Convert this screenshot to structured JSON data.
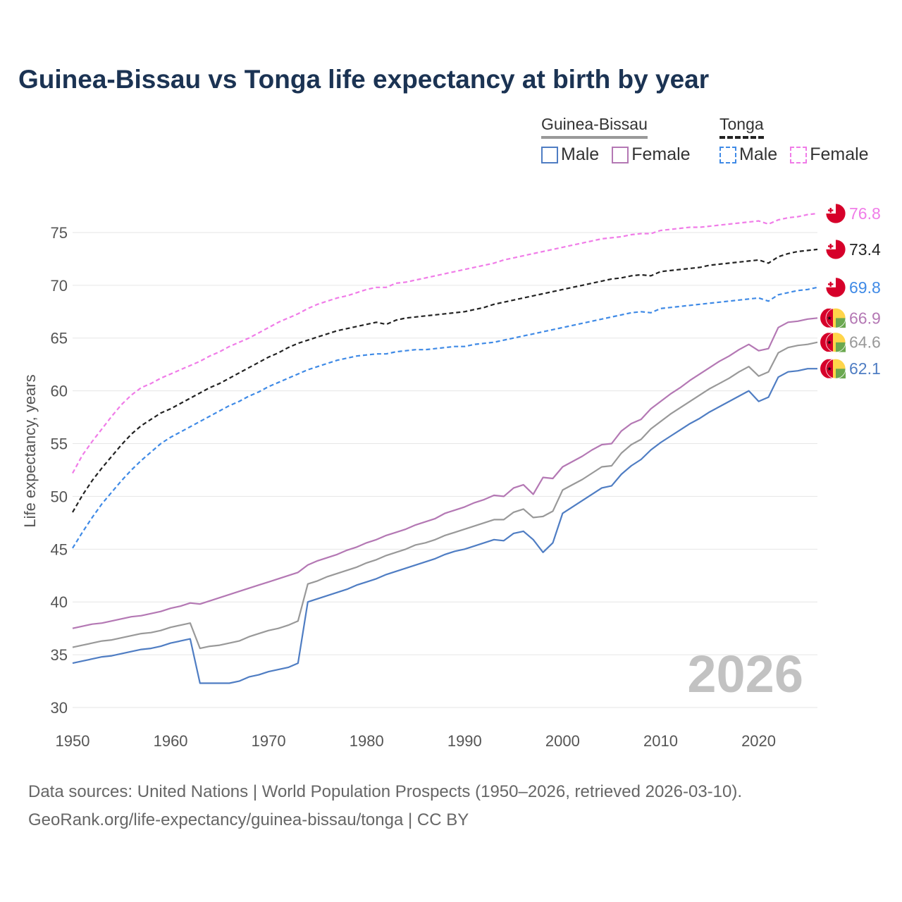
{
  "title": "Guinea-Bissau vs Tonga life expectancy at birth by year",
  "legend": {
    "groups": [
      {
        "name": "Guinea-Bissau",
        "underline_color": "#999999",
        "underline_style": "solid",
        "items": [
          {
            "label": "Male",
            "color": "#4f7dc3",
            "style": "solid"
          },
          {
            "label": "Female",
            "color": "#b478b4",
            "style": "solid"
          }
        ]
      },
      {
        "name": "Tonga",
        "underline_color": "#222222",
        "underline_style": "dashed",
        "items": [
          {
            "label": "Male",
            "color": "#3f8ae6",
            "style": "dashed"
          },
          {
            "label": "Female",
            "color": "#f07ce8",
            "style": "dashed"
          }
        ]
      }
    ]
  },
  "year_watermark": "2026",
  "source": {
    "line1": "Data sources: United Nations | World Population Prospects (1950–2026, retrieved 2026-03-10).",
    "line2": "GeoRank.org/life-expectancy/guinea-bissau/tonga | CC BY"
  },
  "chart_data": {
    "type": "line",
    "title": "Guinea-Bissau vs Tonga life expectancy at birth by year",
    "xlabel": "",
    "ylabel": "Life expectancy, years",
    "xlim": [
      1950,
      2026
    ],
    "ylim": [
      30,
      77
    ],
    "xticks": [
      1950,
      1960,
      1970,
      1980,
      1990,
      2000,
      2010,
      2020
    ],
    "yticks": [
      30,
      35,
      40,
      45,
      50,
      55,
      60,
      65,
      70,
      75
    ],
    "grid": true,
    "x": [
      1950,
      1951,
      1952,
      1953,
      1954,
      1955,
      1956,
      1957,
      1958,
      1959,
      1960,
      1961,
      1962,
      1963,
      1964,
      1965,
      1966,
      1967,
      1968,
      1969,
      1970,
      1971,
      1972,
      1973,
      1974,
      1975,
      1976,
      1977,
      1978,
      1979,
      1980,
      1981,
      1982,
      1983,
      1984,
      1985,
      1986,
      1987,
      1988,
      1989,
      1990,
      1991,
      1992,
      1993,
      1994,
      1995,
      1996,
      1997,
      1998,
      1999,
      2000,
      2001,
      2002,
      2003,
      2004,
      2005,
      2006,
      2007,
      2008,
      2009,
      2010,
      2011,
      2012,
      2013,
      2014,
      2015,
      2016,
      2017,
      2018,
      2019,
      2020,
      2021,
      2022,
      2023,
      2024,
      2025,
      2026
    ],
    "series": [
      {
        "name": "Tonga Female",
        "country": "Tonga",
        "sex": "Female",
        "color": "#f07ce8",
        "dash": true,
        "end_label": "76.8",
        "flag": "tonga",
        "values": [
          52.2,
          53.9,
          55.2,
          56.4,
          57.6,
          58.7,
          59.6,
          60.3,
          60.7,
          61.2,
          61.6,
          62.0,
          62.4,
          62.8,
          63.3,
          63.7,
          64.2,
          64.6,
          65.0,
          65.5,
          66.0,
          66.5,
          66.9,
          67.3,
          67.8,
          68.2,
          68.5,
          68.8,
          69.0,
          69.3,
          69.6,
          69.8,
          69.8,
          70.2,
          70.3,
          70.5,
          70.7,
          70.9,
          71.1,
          71.3,
          71.5,
          71.7,
          71.9,
          72.1,
          72.4,
          72.6,
          72.8,
          73.0,
          73.2,
          73.4,
          73.6,
          73.8,
          74.0,
          74.2,
          74.4,
          74.5,
          74.6,
          74.8,
          74.9,
          74.9,
          75.2,
          75.3,
          75.4,
          75.5,
          75.5,
          75.6,
          75.7,
          75.8,
          75.9,
          76.0,
          76.1,
          75.8,
          76.2,
          76.4,
          76.5,
          76.7,
          76.8
        ]
      },
      {
        "name": "Tonga Total",
        "country": "Tonga",
        "sex": "Total",
        "color": "#222222",
        "dash": true,
        "end_label": "73.4",
        "flag": "tonga",
        "values": [
          48.5,
          50.1,
          51.5,
          52.7,
          53.8,
          54.9,
          55.9,
          56.7,
          57.3,
          57.9,
          58.3,
          58.8,
          59.3,
          59.8,
          60.3,
          60.7,
          61.2,
          61.7,
          62.2,
          62.7,
          63.2,
          63.6,
          64.1,
          64.5,
          64.8,
          65.1,
          65.4,
          65.7,
          65.9,
          66.1,
          66.3,
          66.5,
          66.3,
          66.7,
          66.9,
          67.0,
          67.1,
          67.2,
          67.3,
          67.4,
          67.5,
          67.7,
          67.9,
          68.2,
          68.4,
          68.6,
          68.8,
          69.0,
          69.2,
          69.4,
          69.6,
          69.8,
          70.0,
          70.2,
          70.4,
          70.6,
          70.7,
          70.9,
          71.0,
          70.9,
          71.3,
          71.4,
          71.5,
          71.6,
          71.7,
          71.9,
          72.0,
          72.1,
          72.2,
          72.3,
          72.4,
          72.1,
          72.7,
          73.0,
          73.2,
          73.3,
          73.4
        ]
      },
      {
        "name": "Tonga Male",
        "country": "Tonga",
        "sex": "Male",
        "color": "#3f8ae6",
        "dash": true,
        "end_label": "69.8",
        "flag": "tonga",
        "values": [
          45.1,
          46.6,
          48.0,
          49.3,
          50.4,
          51.5,
          52.5,
          53.4,
          54.2,
          55.0,
          55.6,
          56.1,
          56.6,
          57.1,
          57.6,
          58.1,
          58.6,
          59.0,
          59.5,
          59.9,
          60.4,
          60.8,
          61.2,
          61.6,
          62.0,
          62.3,
          62.6,
          62.9,
          63.1,
          63.3,
          63.4,
          63.5,
          63.5,
          63.7,
          63.8,
          63.9,
          63.9,
          64.0,
          64.1,
          64.2,
          64.2,
          64.4,
          64.5,
          64.6,
          64.8,
          65.0,
          65.2,
          65.4,
          65.6,
          65.8,
          66.0,
          66.2,
          66.4,
          66.6,
          66.8,
          67.0,
          67.2,
          67.4,
          67.5,
          67.4,
          67.8,
          67.9,
          68.0,
          68.1,
          68.2,
          68.3,
          68.4,
          68.5,
          68.6,
          68.7,
          68.8,
          68.5,
          69.1,
          69.3,
          69.5,
          69.6,
          69.8
        ]
      },
      {
        "name": "Guinea-Bissau Female",
        "country": "Guinea-Bissau",
        "sex": "Female",
        "color": "#b478b4",
        "dash": false,
        "end_label": "66.9",
        "flag": "guinea-bissau",
        "values": [
          37.5,
          37.7,
          37.9,
          38.0,
          38.2,
          38.4,
          38.6,
          38.7,
          38.9,
          39.1,
          39.4,
          39.6,
          39.9,
          39.8,
          40.1,
          40.4,
          40.7,
          41.0,
          41.3,
          41.6,
          41.9,
          42.2,
          42.5,
          42.8,
          43.5,
          43.9,
          44.2,
          44.5,
          44.9,
          45.2,
          45.6,
          45.9,
          46.3,
          46.6,
          46.9,
          47.3,
          47.6,
          47.9,
          48.4,
          48.7,
          49.0,
          49.4,
          49.7,
          50.1,
          50.0,
          50.8,
          51.1,
          50.2,
          51.8,
          51.7,
          52.8,
          53.3,
          53.8,
          54.4,
          54.9,
          55.0,
          56.2,
          56.9,
          57.3,
          58.3,
          59.0,
          59.7,
          60.3,
          61.0,
          61.6,
          62.2,
          62.8,
          63.3,
          63.9,
          64.4,
          63.8,
          64.0,
          66.0,
          66.5,
          66.6,
          66.8,
          66.9
        ]
      },
      {
        "name": "Guinea-Bissau Total",
        "country": "Guinea-Bissau",
        "sex": "Total",
        "color": "#999999",
        "dash": false,
        "end_label": "64.6",
        "flag": "guinea-bissau",
        "values": [
          35.7,
          35.9,
          36.1,
          36.3,
          36.4,
          36.6,
          36.8,
          37.0,
          37.1,
          37.3,
          37.6,
          37.8,
          38.0,
          35.6,
          35.8,
          35.9,
          36.1,
          36.3,
          36.7,
          37.0,
          37.3,
          37.5,
          37.8,
          38.2,
          41.7,
          42.0,
          42.4,
          42.7,
          43.0,
          43.3,
          43.7,
          44.0,
          44.4,
          44.7,
          45.0,
          45.4,
          45.6,
          45.9,
          46.3,
          46.6,
          46.9,
          47.2,
          47.5,
          47.8,
          47.8,
          48.5,
          48.8,
          48.0,
          48.1,
          48.6,
          50.6,
          51.1,
          51.6,
          52.2,
          52.8,
          52.9,
          54.1,
          54.9,
          55.4,
          56.4,
          57.1,
          57.8,
          58.4,
          59.0,
          59.6,
          60.2,
          60.7,
          61.2,
          61.8,
          62.3,
          61.4,
          61.8,
          63.6,
          64.1,
          64.3,
          64.4,
          64.6
        ]
      },
      {
        "name": "Guinea-Bissau Male",
        "country": "Guinea-Bissau",
        "sex": "Male",
        "color": "#4f7dc3",
        "dash": false,
        "end_label": "62.1",
        "flag": "guinea-bissau",
        "values": [
          34.2,
          34.4,
          34.6,
          34.8,
          34.9,
          35.1,
          35.3,
          35.5,
          35.6,
          35.8,
          36.1,
          36.3,
          36.5,
          32.3,
          32.3,
          32.3,
          32.3,
          32.5,
          32.9,
          33.1,
          33.4,
          33.6,
          33.8,
          34.2,
          40.0,
          40.3,
          40.6,
          40.9,
          41.2,
          41.6,
          41.9,
          42.2,
          42.6,
          42.9,
          43.2,
          43.5,
          43.8,
          44.1,
          44.5,
          44.8,
          45.0,
          45.3,
          45.6,
          45.9,
          45.8,
          46.5,
          46.7,
          45.9,
          44.7,
          45.6,
          48.4,
          49.0,
          49.6,
          50.2,
          50.8,
          51.0,
          52.1,
          52.9,
          53.5,
          54.4,
          55.1,
          55.7,
          56.3,
          56.9,
          57.4,
          58.0,
          58.5,
          59.0,
          59.5,
          60.0,
          59.0,
          59.4,
          61.3,
          61.8,
          61.9,
          62.1,
          62.1
        ]
      }
    ]
  }
}
